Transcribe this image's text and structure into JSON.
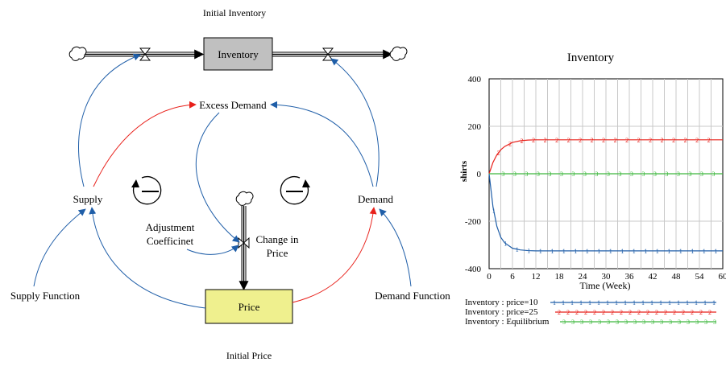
{
  "diagram": {
    "labels": {
      "initial_inventory": "Initial Inventory",
      "inventory": "Inventory",
      "excess_demand": "Excess Demand",
      "supply": "Supply",
      "demand": "Demand",
      "adjustment_1": "Adjustment",
      "adjustment_2": "Coefficinet",
      "change_1": "Change in",
      "change_2": "Price",
      "supply_function": "Supply Function",
      "demand_function": "Demand Function",
      "price": "Price",
      "initial_price": "Initial Price"
    },
    "colors": {
      "positive_link": "#e8201a",
      "negative_link": "#1f5ea8",
      "stock_gray": "#c0c0c0",
      "stock_yellow": "#eff08e"
    }
  },
  "chart_data": {
    "type": "line",
    "title": "Inventory",
    "xlabel": "Time (Week)",
    "ylabel": "shirts",
    "xlim": [
      0,
      60
    ],
    "ylim": [
      -400,
      400
    ],
    "xticks": [
      0,
      6,
      12,
      18,
      24,
      30,
      36,
      42,
      48,
      54,
      60
    ],
    "yticks": [
      400,
      200,
      0,
      -200,
      -400
    ],
    "x": [
      0,
      1,
      2,
      3,
      4,
      6,
      8,
      10,
      12,
      15,
      18,
      24,
      30,
      36,
      42,
      48,
      54,
      60
    ],
    "series": [
      {
        "name": "Inventory : price=10",
        "marker": "1",
        "color": "#1f5ea8",
        "values": [
          0,
          -140,
          -222,
          -268,
          -291,
          -314,
          -321,
          -324,
          -325,
          -325,
          -325,
          -325,
          -325,
          -325,
          -325,
          -325,
          -325,
          -325
        ]
      },
      {
        "name": "Inventory : price=25",
        "marker": "2",
        "color": "#e8201a",
        "values": [
          0,
          48,
          80,
          101,
          115,
          132,
          139,
          142,
          143,
          143,
          143,
          143,
          143,
          143,
          143,
          143,
          143,
          143
        ]
      },
      {
        "name": "Inventory : Equilibrium",
        "marker": "3",
        "color": "#3db83d",
        "values": [
          0,
          0,
          0,
          0,
          0,
          0,
          0,
          0,
          0,
          0,
          0,
          0,
          0,
          0,
          0,
          0,
          0,
          0
        ]
      }
    ]
  }
}
